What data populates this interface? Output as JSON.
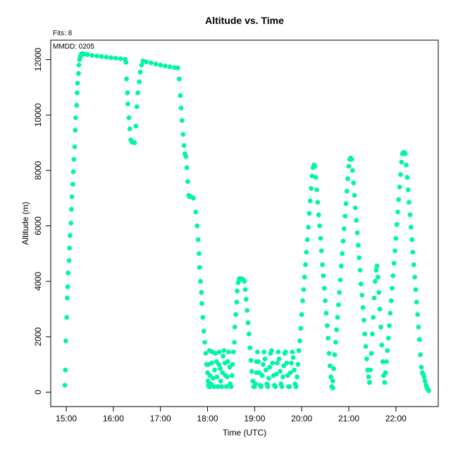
{
  "chart_data": {
    "type": "scatter",
    "title": "Altitude  vs. Time",
    "subtitle": "Fits: 8",
    "annotation": "MMDD: 0205",
    "xlabel": "Time (UTC)",
    "ylabel": "Altitude (m)",
    "x_ticks": [
      "15:00",
      "16:00",
      "17:00",
      "18:00",
      "19:00",
      "20:00",
      "21:00",
      "22:00"
    ],
    "y_ticks": [
      "0",
      "2000",
      "4000",
      "6000",
      "8000",
      "10000",
      "12000"
    ],
    "xlim": [
      14.67,
      22.9
    ],
    "ylim": [
      -520,
      12700
    ],
    "marker_color": "#00f5a8",
    "series": [
      {
        "x": [
          14.97,
          14.98,
          14.99,
          15.01,
          15.02,
          15.03,
          15.04,
          15.06,
          15.07,
          15.08,
          15.1,
          15.11,
          15.12,
          15.14,
          15.15,
          15.16,
          15.18,
          15.19,
          15.2,
          15.22,
          15.23,
          15.24,
          15.26,
          15.27,
          15.28,
          15.3,
          15.31,
          15.32,
          15.33,
          15.35,
          15.38,
          15.45,
          15.55,
          15.65,
          15.75,
          15.85,
          15.95,
          16.05,
          16.15,
          16.25,
          16.27,
          16.28,
          16.3,
          16.31,
          16.33,
          16.35,
          16.37,
          16.4,
          16.42,
          16.45,
          16.48,
          16.5,
          16.52,
          16.55,
          16.57,
          16.6,
          16.63,
          16.7,
          16.8,
          16.9,
          17.0,
          17.1,
          17.2,
          17.3,
          17.37,
          17.4,
          17.42,
          17.44,
          17.46,
          17.48,
          17.5,
          17.52,
          17.54,
          17.56,
          17.58,
          17.6,
          17.62,
          17.65,
          17.7,
          17.75,
          17.78,
          17.8,
          17.82,
          17.83,
          17.85,
          17.87,
          17.88,
          17.9,
          17.92,
          17.94,
          17.96,
          17.98,
          18.0,
          18.01,
          18.02,
          18.03,
          18.05,
          18.07
        ],
        "y": [
          250,
          800,
          1850,
          2700,
          3400,
          3800,
          4300,
          4750,
          5200,
          5650,
          6100,
          6600,
          7050,
          7500,
          7950,
          8400,
          8850,
          9450,
          9900,
          10350,
          10800,
          11150,
          11500,
          11800,
          12000,
          12100,
          12150,
          12200,
          12210,
          12210,
          12200,
          12180,
          12150,
          12130,
          12110,
          12090,
          12070,
          12050,
          12030,
          12010,
          11900,
          11300,
          10800,
          10400,
          9900,
          9500,
          9100,
          9020,
          9010,
          9000,
          9600,
          10300,
          10800,
          11200,
          11550,
          11800,
          11950,
          11920,
          11880,
          11840,
          11800,
          11770,
          11740,
          11710,
          11700,
          11300,
          10700,
          10250,
          9800,
          9300,
          8900,
          8600,
          8500,
          8100,
          7600,
          7100,
          7050,
          7050,
          7000,
          6500,
          6000,
          5500,
          5000,
          4500,
          4000,
          3600,
          3200,
          2700,
          2200,
          1800,
          1400,
          1000,
          700,
          400,
          250,
          200,
          200,
          300
        ]
      },
      {
        "x": [
          18.02,
          18.04,
          18.05,
          18.07,
          18.09,
          18.1,
          18.12,
          18.14,
          18.15,
          18.17,
          18.19,
          18.2,
          18.22,
          18.24,
          18.25,
          18.27,
          18.28,
          18.3,
          18.32,
          18.33,
          18.35,
          18.37,
          18.38,
          18.4,
          18.42,
          18.43,
          18.45,
          18.47,
          18.48,
          18.5,
          18.52,
          18.53,
          18.55,
          18.57,
          18.58,
          18.6,
          18.62,
          18.63,
          18.65,
          18.67,
          18.68,
          18.7,
          18.72,
          18.74,
          18.76,
          18.78,
          18.8,
          18.82,
          18.84,
          18.86,
          18.88,
          18.9,
          18.92,
          18.94,
          18.96,
          18.98,
          19.0,
          19.02,
          19.04
        ],
        "y": [
          1000,
          1500,
          600,
          250,
          1050,
          1450,
          500,
          200,
          800,
          1400,
          1100,
          550,
          200,
          1000,
          1450,
          850,
          400,
          200,
          700,
          1300,
          1500,
          1050,
          600,
          200,
          550,
          1100,
          1450,
          900,
          300,
          200,
          600,
          1000,
          1450,
          1800,
          2350,
          2800,
          3250,
          3650,
          3950,
          4050,
          4100,
          4100,
          4090,
          4080,
          4060,
          4000,
          3700,
          3350,
          2950,
          2500,
          2100,
          1600,
          1150,
          750,
          400,
          200,
          200,
          300,
          700
        ]
      },
      {
        "x": [
          19.04,
          19.06,
          19.08,
          19.1,
          19.12,
          19.14,
          19.16,
          19.18,
          19.2,
          19.22,
          19.24,
          19.26,
          19.28,
          19.3,
          19.32,
          19.34,
          19.36,
          19.38,
          19.4,
          19.42,
          19.44,
          19.46,
          19.48,
          19.5,
          19.52,
          19.54,
          19.56,
          19.58,
          19.6,
          19.62,
          19.64,
          19.66,
          19.68,
          19.7,
          19.72,
          19.74,
          19.76,
          19.78,
          19.8,
          19.82,
          19.84,
          19.86,
          19.88,
          19.9,
          19.92,
          19.94
        ],
        "y": [
          1100,
          1450,
          1100,
          700,
          250,
          200,
          600,
          1000,
          1450,
          1200,
          800,
          300,
          200,
          500,
          900,
          1400,
          1500,
          1050,
          600,
          250,
          200,
          650,
          1050,
          1450,
          1200,
          750,
          300,
          200,
          550,
          950,
          1400,
          1450,
          1050,
          600,
          200,
          200,
          700,
          1050,
          1450,
          1250,
          800,
          300,
          200,
          550,
          1000,
          1500
        ]
      },
      {
        "x": [
          19.94,
          19.96,
          19.98,
          20.0,
          20.02,
          20.04,
          20.06,
          20.08,
          20.1,
          20.12,
          20.14,
          20.16,
          20.18,
          20.2,
          20.22,
          20.24,
          20.26,
          20.28,
          20.3,
          20.32,
          20.34,
          20.36,
          20.38,
          20.4,
          20.42,
          20.44,
          20.46,
          20.48,
          20.5,
          20.52,
          20.54,
          20.56,
          20.58,
          20.6,
          20.62,
          20.64,
          20.66
        ],
        "y": [
          1500,
          1850,
          2300,
          2800,
          3300,
          3700,
          4150,
          4600,
          5050,
          5500,
          5950,
          6450,
          6900,
          7350,
          7800,
          8100,
          8200,
          8150,
          7750,
          7300,
          6850,
          6400,
          6000,
          5550,
          5100,
          4600,
          4200,
          3750,
          3300,
          2850,
          2400,
          1950,
          1400,
          950,
          550,
          200,
          150
        ]
      },
      {
        "x": [
          20.66,
          20.68,
          20.7,
          20.72,
          20.74,
          20.76,
          20.78,
          20.8,
          20.82,
          20.84,
          20.86,
          20.88,
          20.9,
          20.92,
          20.94,
          20.96,
          20.98,
          21.0,
          21.02,
          21.04,
          21.06,
          21.08,
          21.1,
          21.12,
          21.14,
          21.16,
          21.18,
          21.2,
          21.22,
          21.24,
          21.26,
          21.28,
          21.3,
          21.32,
          21.34,
          21.36,
          21.38,
          21.4,
          21.42,
          21.44
        ],
        "y": [
          400,
          850,
          1350,
          1800,
          2250,
          2700,
          3150,
          3600,
          4050,
          4550,
          5000,
          5450,
          5900,
          6350,
          6800,
          7250,
          7700,
          8150,
          8400,
          8450,
          8400,
          8000,
          7550,
          7100,
          6650,
          6200,
          5750,
          5300,
          4850,
          4400,
          3900,
          3500,
          3050,
          2600,
          2100,
          1650,
          1200,
          800,
          550,
          350
        ]
      },
      {
        "x": [
          21.44,
          21.46,
          21.48,
          21.5,
          21.52,
          21.54,
          21.56,
          21.58,
          21.6,
          21.62,
          21.64,
          21.66,
          21.68,
          21.7,
          21.72,
          21.74,
          21.76
        ],
        "y": [
          350,
          800,
          1400,
          2100,
          2700,
          3400,
          4000,
          4400,
          4550,
          4150,
          3600,
          3000,
          2350,
          1700,
          1100,
          600,
          350
        ]
      },
      {
        "x": [
          21.76,
          21.78,
          21.8,
          21.82,
          21.84,
          21.86,
          21.88,
          21.9,
          21.92,
          21.94,
          21.96,
          21.98,
          22.0,
          22.02,
          22.04,
          22.06,
          22.08,
          22.1,
          22.12,
          22.14,
          22.16,
          22.18,
          22.2,
          22.22,
          22.24,
          22.26,
          22.28,
          22.3,
          22.32,
          22.34,
          22.36,
          22.38,
          22.4,
          22.42,
          22.44,
          22.46,
          22.48,
          22.5,
          22.52,
          22.54,
          22.56,
          22.58,
          22.6,
          22.62,
          22.64,
          22.66,
          22.68,
          22.7
        ],
        "y": [
          350,
          700,
          1100,
          1500,
          1950,
          2400,
          2850,
          3300,
          3750,
          4200,
          4650,
          5100,
          5550,
          6050,
          6500,
          6950,
          7400,
          7850,
          8300,
          8600,
          8650,
          8650,
          8600,
          8200,
          7750,
          7300,
          6850,
          6400,
          5950,
          5500,
          5050,
          4600,
          4150,
          3700,
          3250,
          2800,
          2350,
          1900,
          1350,
          900,
          700,
          650,
          550,
          400,
          250,
          150,
          100,
          50
        ]
      }
    ]
  }
}
